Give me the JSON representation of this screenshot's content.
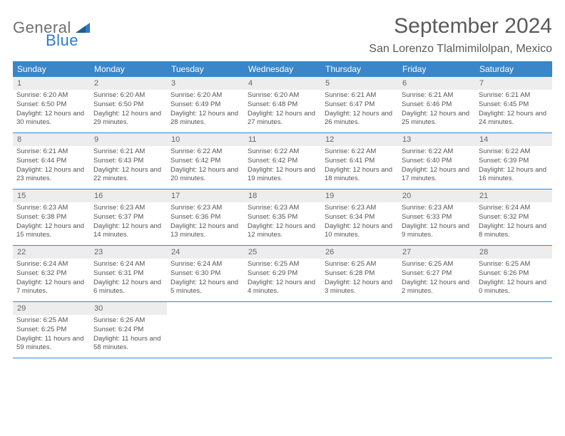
{
  "logo": {
    "general": "General",
    "blue": "Blue"
  },
  "title": "September 2024",
  "location": "San Lorenzo Tlalmimilolpan, Mexico",
  "colors": {
    "header_bg": "#3a86c8",
    "daynum_bg": "#ededed",
    "text": "#555555",
    "logo_gray": "#6f6f6f",
    "logo_blue": "#2f7bc4",
    "background": "#ffffff"
  },
  "day_names": [
    "Sunday",
    "Monday",
    "Tuesday",
    "Wednesday",
    "Thursday",
    "Friday",
    "Saturday"
  ],
  "weeks": [
    [
      {
        "n": "1",
        "sr": "Sunrise: 6:20 AM",
        "ss": "Sunset: 6:50 PM",
        "dl": "Daylight: 12 hours and 30 minutes."
      },
      {
        "n": "2",
        "sr": "Sunrise: 6:20 AM",
        "ss": "Sunset: 6:50 PM",
        "dl": "Daylight: 12 hours and 29 minutes."
      },
      {
        "n": "3",
        "sr": "Sunrise: 6:20 AM",
        "ss": "Sunset: 6:49 PM",
        "dl": "Daylight: 12 hours and 28 minutes."
      },
      {
        "n": "4",
        "sr": "Sunrise: 6:20 AM",
        "ss": "Sunset: 6:48 PM",
        "dl": "Daylight: 12 hours and 27 minutes."
      },
      {
        "n": "5",
        "sr": "Sunrise: 6:21 AM",
        "ss": "Sunset: 6:47 PM",
        "dl": "Daylight: 12 hours and 26 minutes."
      },
      {
        "n": "6",
        "sr": "Sunrise: 6:21 AM",
        "ss": "Sunset: 6:46 PM",
        "dl": "Daylight: 12 hours and 25 minutes."
      },
      {
        "n": "7",
        "sr": "Sunrise: 6:21 AM",
        "ss": "Sunset: 6:45 PM",
        "dl": "Daylight: 12 hours and 24 minutes."
      }
    ],
    [
      {
        "n": "8",
        "sr": "Sunrise: 6:21 AM",
        "ss": "Sunset: 6:44 PM",
        "dl": "Daylight: 12 hours and 23 minutes."
      },
      {
        "n": "9",
        "sr": "Sunrise: 6:21 AM",
        "ss": "Sunset: 6:43 PM",
        "dl": "Daylight: 12 hours and 22 minutes."
      },
      {
        "n": "10",
        "sr": "Sunrise: 6:22 AM",
        "ss": "Sunset: 6:42 PM",
        "dl": "Daylight: 12 hours and 20 minutes."
      },
      {
        "n": "11",
        "sr": "Sunrise: 6:22 AM",
        "ss": "Sunset: 6:42 PM",
        "dl": "Daylight: 12 hours and 19 minutes."
      },
      {
        "n": "12",
        "sr": "Sunrise: 6:22 AM",
        "ss": "Sunset: 6:41 PM",
        "dl": "Daylight: 12 hours and 18 minutes."
      },
      {
        "n": "13",
        "sr": "Sunrise: 6:22 AM",
        "ss": "Sunset: 6:40 PM",
        "dl": "Daylight: 12 hours and 17 minutes."
      },
      {
        "n": "14",
        "sr": "Sunrise: 6:22 AM",
        "ss": "Sunset: 6:39 PM",
        "dl": "Daylight: 12 hours and 16 minutes."
      }
    ],
    [
      {
        "n": "15",
        "sr": "Sunrise: 6:23 AM",
        "ss": "Sunset: 6:38 PM",
        "dl": "Daylight: 12 hours and 15 minutes."
      },
      {
        "n": "16",
        "sr": "Sunrise: 6:23 AM",
        "ss": "Sunset: 6:37 PM",
        "dl": "Daylight: 12 hours and 14 minutes."
      },
      {
        "n": "17",
        "sr": "Sunrise: 6:23 AM",
        "ss": "Sunset: 6:36 PM",
        "dl": "Daylight: 12 hours and 13 minutes."
      },
      {
        "n": "18",
        "sr": "Sunrise: 6:23 AM",
        "ss": "Sunset: 6:35 PM",
        "dl": "Daylight: 12 hours and 12 minutes."
      },
      {
        "n": "19",
        "sr": "Sunrise: 6:23 AM",
        "ss": "Sunset: 6:34 PM",
        "dl": "Daylight: 12 hours and 10 minutes."
      },
      {
        "n": "20",
        "sr": "Sunrise: 6:23 AM",
        "ss": "Sunset: 6:33 PM",
        "dl": "Daylight: 12 hours and 9 minutes."
      },
      {
        "n": "21",
        "sr": "Sunrise: 6:24 AM",
        "ss": "Sunset: 6:32 PM",
        "dl": "Daylight: 12 hours and 8 minutes."
      }
    ],
    [
      {
        "n": "22",
        "sr": "Sunrise: 6:24 AM",
        "ss": "Sunset: 6:32 PM",
        "dl": "Daylight: 12 hours and 7 minutes."
      },
      {
        "n": "23",
        "sr": "Sunrise: 6:24 AM",
        "ss": "Sunset: 6:31 PM",
        "dl": "Daylight: 12 hours and 6 minutes."
      },
      {
        "n": "24",
        "sr": "Sunrise: 6:24 AM",
        "ss": "Sunset: 6:30 PM",
        "dl": "Daylight: 12 hours and 5 minutes."
      },
      {
        "n": "25",
        "sr": "Sunrise: 6:25 AM",
        "ss": "Sunset: 6:29 PM",
        "dl": "Daylight: 12 hours and 4 minutes."
      },
      {
        "n": "26",
        "sr": "Sunrise: 6:25 AM",
        "ss": "Sunset: 6:28 PM",
        "dl": "Daylight: 12 hours and 3 minutes."
      },
      {
        "n": "27",
        "sr": "Sunrise: 6:25 AM",
        "ss": "Sunset: 6:27 PM",
        "dl": "Daylight: 12 hours and 2 minutes."
      },
      {
        "n": "28",
        "sr": "Sunrise: 6:25 AM",
        "ss": "Sunset: 6:26 PM",
        "dl": "Daylight: 12 hours and 0 minutes."
      }
    ],
    [
      {
        "n": "29",
        "sr": "Sunrise: 6:25 AM",
        "ss": "Sunset: 6:25 PM",
        "dl": "Daylight: 11 hours and 59 minutes."
      },
      {
        "n": "30",
        "sr": "Sunrise: 6:26 AM",
        "ss": "Sunset: 6:24 PM",
        "dl": "Daylight: 11 hours and 58 minutes."
      },
      null,
      null,
      null,
      null,
      null
    ]
  ]
}
